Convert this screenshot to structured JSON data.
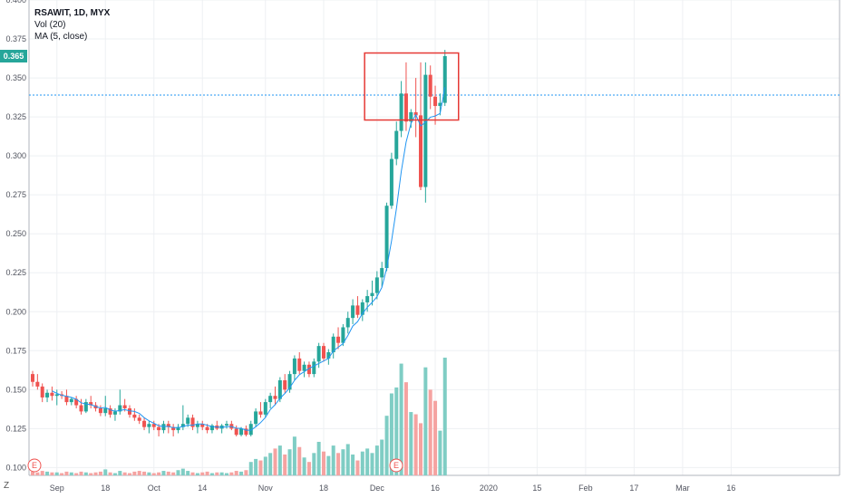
{
  "legend": {
    "symbol": "RSAWIT, 1D, MYX",
    "volume": "Vol (20)",
    "ma": "MA (5, close)"
  },
  "last_price_label": "0.365",
  "z_button": "Z",
  "earnings_marker": "E",
  "colors": {
    "up": "#26a69a",
    "down": "#ef5350",
    "ma_line": "#2196f3",
    "vol_up": "#7fcdc4",
    "vol_down": "#f5a3a1",
    "highlight_box": "#e53935"
  },
  "chart_data": {
    "type": "candlestick",
    "title": "RSAWIT, 1D, MYX",
    "ylim": [
      0.095,
      0.4
    ],
    "y_ticks": [
      "0.100",
      "0.125",
      "0.150",
      "0.175",
      "0.200",
      "0.225",
      "0.250",
      "0.275",
      "0.300",
      "0.325",
      "0.350",
      "0.375",
      "0.400"
    ],
    "x_ticks": [
      {
        "label": "Sep",
        "idx": 5
      },
      {
        "label": "18",
        "idx": 15
      },
      {
        "label": "Oct",
        "idx": 25
      },
      {
        "label": "14",
        "idx": 35
      },
      {
        "label": "Nov",
        "idx": 48
      },
      {
        "label": "18",
        "idx": 60
      },
      {
        "label": "Dec",
        "idx": 71
      },
      {
        "label": "16",
        "idx": 83
      },
      {
        "label": "2020",
        "idx": 94
      },
      {
        "label": "15",
        "idx": 104
      },
      {
        "label": "Feb",
        "idx": 114
      },
      {
        "label": "17",
        "idx": 124
      },
      {
        "label": "Mar",
        "idx": 134
      },
      {
        "label": "16",
        "idx": 144
      }
    ],
    "horizontal_line": 0.339,
    "candles": [
      [
        0.16,
        0.162,
        0.152,
        0.155,
        5
      ],
      [
        0.155,
        0.16,
        0.15,
        0.152,
        4
      ],
      [
        0.152,
        0.154,
        0.142,
        0.145,
        6
      ],
      [
        0.145,
        0.15,
        0.142,
        0.148,
        5
      ],
      [
        0.148,
        0.152,
        0.143,
        0.146,
        4
      ],
      [
        0.146,
        0.15,
        0.14,
        0.147,
        4
      ],
      [
        0.147,
        0.149,
        0.144,
        0.146,
        3
      ],
      [
        0.146,
        0.15,
        0.14,
        0.142,
        5
      ],
      [
        0.142,
        0.145,
        0.14,
        0.144,
        4
      ],
      [
        0.144,
        0.146,
        0.138,
        0.14,
        3
      ],
      [
        0.14,
        0.144,
        0.134,
        0.136,
        5
      ],
      [
        0.136,
        0.144,
        0.135,
        0.142,
        4
      ],
      [
        0.142,
        0.146,
        0.138,
        0.14,
        3
      ],
      [
        0.14,
        0.142,
        0.136,
        0.138,
        4
      ],
      [
        0.138,
        0.14,
        0.133,
        0.135,
        5
      ],
      [
        0.135,
        0.146,
        0.133,
        0.138,
        8
      ],
      [
        0.138,
        0.14,
        0.132,
        0.134,
        4
      ],
      [
        0.134,
        0.138,
        0.13,
        0.136,
        3
      ],
      [
        0.136,
        0.15,
        0.134,
        0.14,
        6
      ],
      [
        0.14,
        0.144,
        0.136,
        0.138,
        4
      ],
      [
        0.138,
        0.14,
        0.132,
        0.134,
        3
      ],
      [
        0.134,
        0.138,
        0.13,
        0.132,
        5
      ],
      [
        0.132,
        0.134,
        0.128,
        0.13,
        6
      ],
      [
        0.13,
        0.132,
        0.124,
        0.126,
        5
      ],
      [
        0.126,
        0.13,
        0.122,
        0.128,
        4
      ],
      [
        0.128,
        0.13,
        0.124,
        0.126,
        3
      ],
      [
        0.126,
        0.128,
        0.12,
        0.124,
        4
      ],
      [
        0.124,
        0.13,
        0.122,
        0.128,
        6
      ],
      [
        0.128,
        0.13,
        0.122,
        0.126,
        5
      ],
      [
        0.126,
        0.128,
        0.12,
        0.124,
        4
      ],
      [
        0.124,
        0.128,
        0.122,
        0.126,
        7
      ],
      [
        0.126,
        0.14,
        0.124,
        0.128,
        9
      ],
      [
        0.128,
        0.134,
        0.126,
        0.132,
        6
      ],
      [
        0.132,
        0.134,
        0.124,
        0.126,
        4
      ],
      [
        0.126,
        0.13,
        0.122,
        0.128,
        3
      ],
      [
        0.128,
        0.13,
        0.124,
        0.126,
        4
      ],
      [
        0.126,
        0.128,
        0.122,
        0.124,
        5
      ],
      [
        0.124,
        0.128,
        0.122,
        0.127,
        3
      ],
      [
        0.127,
        0.13,
        0.124,
        0.125,
        4
      ],
      [
        0.125,
        0.128,
        0.122,
        0.127,
        4
      ],
      [
        0.127,
        0.13,
        0.125,
        0.128,
        3
      ],
      [
        0.128,
        0.13,
        0.124,
        0.125,
        4
      ],
      [
        0.125,
        0.127,
        0.12,
        0.121,
        6
      ],
      [
        0.121,
        0.126,
        0.12,
        0.125,
        5
      ],
      [
        0.125,
        0.127,
        0.12,
        0.121,
        7
      ],
      [
        0.121,
        0.13,
        0.12,
        0.128,
        18
      ],
      [
        0.128,
        0.138,
        0.126,
        0.136,
        22
      ],
      [
        0.136,
        0.142,
        0.132,
        0.134,
        20
      ],
      [
        0.134,
        0.144,
        0.132,
        0.142,
        25
      ],
      [
        0.142,
        0.148,
        0.138,
        0.146,
        30
      ],
      [
        0.146,
        0.152,
        0.14,
        0.144,
        36
      ],
      [
        0.144,
        0.158,
        0.142,
        0.156,
        40
      ],
      [
        0.156,
        0.16,
        0.148,
        0.15,
        28
      ],
      [
        0.15,
        0.162,
        0.148,
        0.16,
        35
      ],
      [
        0.16,
        0.172,
        0.156,
        0.17,
        52
      ],
      [
        0.17,
        0.174,
        0.16,
        0.162,
        38
      ],
      [
        0.162,
        0.168,
        0.158,
        0.166,
        24
      ],
      [
        0.166,
        0.168,
        0.158,
        0.16,
        18
      ],
      [
        0.16,
        0.17,
        0.158,
        0.168,
        30
      ],
      [
        0.168,
        0.18,
        0.164,
        0.178,
        45
      ],
      [
        0.178,
        0.18,
        0.168,
        0.17,
        32
      ],
      [
        0.17,
        0.176,
        0.166,
        0.174,
        26
      ],
      [
        0.174,
        0.186,
        0.17,
        0.184,
        40
      ],
      [
        0.184,
        0.19,
        0.176,
        0.18,
        30
      ],
      [
        0.18,
        0.192,
        0.178,
        0.19,
        35
      ],
      [
        0.19,
        0.2,
        0.186,
        0.196,
        42
      ],
      [
        0.196,
        0.208,
        0.192,
        0.204,
        28
      ],
      [
        0.204,
        0.21,
        0.196,
        0.198,
        20
      ],
      [
        0.198,
        0.208,
        0.194,
        0.206,
        32
      ],
      [
        0.206,
        0.214,
        0.2,
        0.21,
        36
      ],
      [
        0.21,
        0.22,
        0.204,
        0.212,
        30
      ],
      [
        0.212,
        0.226,
        0.208,
        0.222,
        40
      ],
      [
        0.222,
        0.232,
        0.216,
        0.228,
        48
      ],
      [
        0.228,
        0.27,
        0.226,
        0.268,
        80
      ],
      [
        0.268,
        0.302,
        0.266,
        0.298,
        110
      ],
      [
        0.298,
        0.322,
        0.294,
        0.316,
        118
      ],
      [
        0.316,
        0.348,
        0.312,
        0.34,
        150
      ],
      [
        0.34,
        0.36,
        0.316,
        0.322,
        125
      ],
      [
        0.322,
        0.33,
        0.318,
        0.328,
        85
      ],
      [
        0.328,
        0.35,
        0.312,
        0.326,
        82
      ],
      [
        0.326,
        0.36,
        0.278,
        0.28,
        70
      ],
      [
        0.28,
        0.36,
        0.27,
        0.352,
        145
      ],
      [
        0.352,
        0.358,
        0.33,
        0.338,
        115
      ],
      [
        0.338,
        0.345,
        0.32,
        0.332,
        100
      ],
      [
        0.332,
        0.34,
        0.326,
        0.334,
        60
      ],
      [
        0.334,
        0.368,
        0.332,
        0.364,
        158
      ]
    ]
  }
}
